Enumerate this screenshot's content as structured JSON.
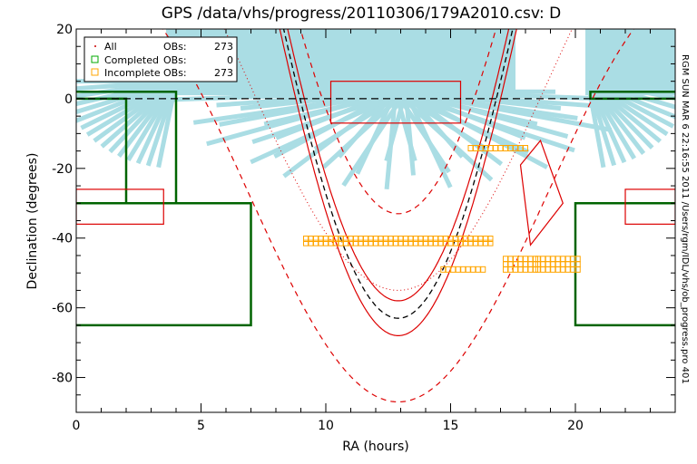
{
  "chart_data": {
    "type": "scatter",
    "title": "GPS /data/vhs/progress/20110306/179A2010.csv: D",
    "xlabel": "RA (hours)",
    "ylabel": "Declination (degrees)",
    "xlim": [
      0,
      24
    ],
    "ylim": [
      -90,
      20
    ],
    "x_ticks": [
      0,
      5,
      10,
      15,
      20
    ],
    "y_ticks": [
      20,
      0,
      -20,
      -40,
      -60,
      -80
    ],
    "side_note": "RGM SUN MAR  6 22:16:55 2011 /Users/rgm/IDL/vhs/ob_progress.pro 401",
    "legend": {
      "position": "top-left",
      "entries": [
        {
          "label": "All",
          "unit": "OBs:",
          "count": "273",
          "marker": "dot",
          "color": "#cc0000"
        },
        {
          "label": "Completed",
          "unit": "OBs:",
          "count": "0",
          "marker": "square",
          "color": "#00aa00"
        },
        {
          "label": "Incomplete",
          "unit": "OBs:",
          "count": "273",
          "marker": "square",
          "color": "#ffa500"
        }
      ]
    },
    "series": [
      {
        "name": "Incomplete OBs",
        "color": "#ffa500",
        "tiles": [
          {
            "ra": [
              9.2,
              16.6
            ],
            "dec": -40.2
          },
          {
            "ra": [
              9.2,
              16.6
            ],
            "dec": -41.4
          },
          {
            "ra": [
              15.8,
              18.1
            ],
            "dec": -14.2
          },
          {
            "ra": [
              17.2,
              18.5
            ],
            "dec": -46.0
          },
          {
            "ra": [
              17.2,
              18.5
            ],
            "dec": -47.5
          },
          {
            "ra": [
              17.2,
              18.5
            ],
            "dec": -49.0
          },
          {
            "ra": [
              18.5,
              20.1
            ],
            "dec": -46.0
          },
          {
            "ra": [
              18.5,
              20.1
            ],
            "dec": -47.5
          },
          {
            "ra": [
              18.5,
              20.1
            ],
            "dec": -49.0
          },
          {
            "ra": [
              14.7,
              16.3
            ],
            "dec": -49.0
          }
        ]
      }
    ],
    "colors": {
      "sky_background": "#aadde4",
      "survey_boundary": "#006400",
      "field_boxes": "#dd0000",
      "galactic_plane": "#000000"
    }
  }
}
